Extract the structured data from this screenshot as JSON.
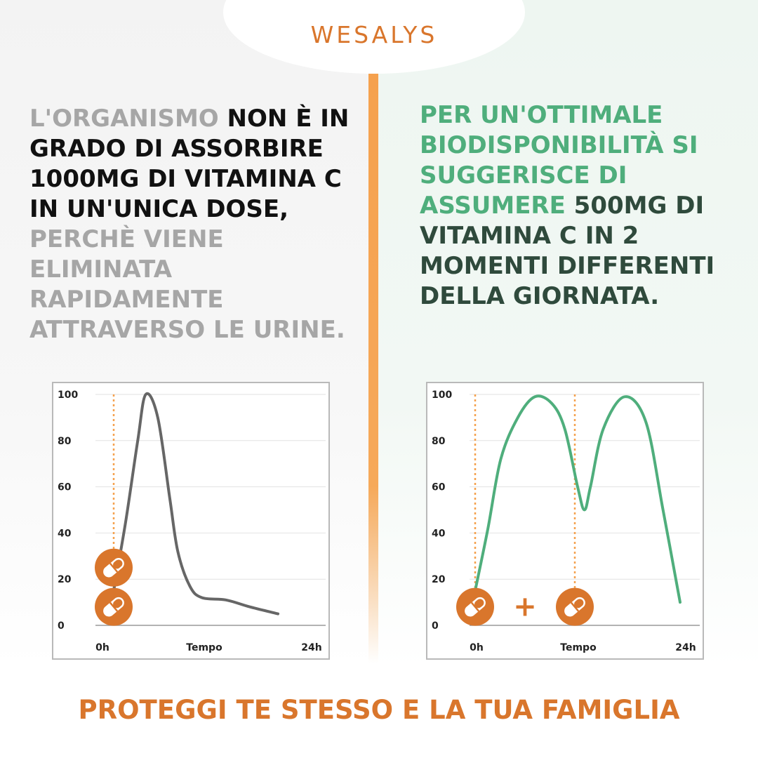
{
  "brand": {
    "logo": "WESALYS"
  },
  "left_text": {
    "part1": "L'ORGANISMO",
    "part2": " NON È IN GRADO DI ASSORBIRE 1000MG DI VITAMINA C IN UN'UNICA DOSE,",
    "part3": " PERCHÈ VIENE ELIMINATA RAPIDAMENTE ATTRAVERSO LE URINE."
  },
  "right_text": {
    "part1": "PER UN'OTTIMALE BIODISPONIBILITÀ SI SUGGERISCE DI ASSUMERE",
    "part2": " 500MG DI VITAMINA C IN 2 MOMENTI DIFFERENTI DELLA GIORNATA."
  },
  "plus_sign": "+",
  "footer": "PROTEGGI TE STESSO E LA TUA FAMIGLIA",
  "colors": {
    "accent_orange": "#d9762c",
    "divider_orange": "#f5a14e",
    "green": "#4fae7c",
    "dark_green": "#2f4a3c",
    "grey_text": "#a6a6a6",
    "line_grey": "#666666"
  },
  "chart_data": [
    {
      "type": "line",
      "title": "",
      "xlabel": "",
      "ylabel": "",
      "x_tick_labels": {
        "start": "0h",
        "middle": "Tempo",
        "end": "24h"
      },
      "x": [
        0,
        1.5,
        3,
        4,
        5.5,
        7,
        8,
        9.5,
        11,
        14,
        17,
        20.5
      ],
      "series": [
        {
          "values": [
            15,
            45,
            80,
            100,
            90,
            55,
            32,
            17,
            12,
            11,
            8,
            5
          ],
          "color": "#666666"
        }
      ],
      "xlim": [
        0,
        24
      ],
      "ylim": [
        0,
        100
      ],
      "y_ticks": [
        0,
        20,
        40,
        60,
        80,
        100
      ],
      "grid": true,
      "dose_markers": [
        {
          "x": 0,
          "values": [
            25,
            8
          ],
          "icon": "capsule-icon"
        }
      ]
    },
    {
      "type": "line",
      "title": "",
      "xlabel": "",
      "ylabel": "",
      "x_tick_labels": {
        "start": "0h",
        "middle": "Tempo",
        "end": "24h"
      },
      "x": [
        0,
        1.5,
        3,
        5,
        7,
        9,
        10.5,
        12,
        12.8,
        13.5,
        15,
        17.5,
        20,
        22,
        24
      ],
      "series": [
        {
          "values": [
            15,
            42,
            72,
            90,
            99,
            96,
            85,
            60,
            50,
            60,
            85,
            99,
            88,
            50,
            10
          ],
          "color": "#4fae7c"
        }
      ],
      "xlim": [
        0,
        24
      ],
      "ylim": [
        0,
        100
      ],
      "y_ticks": [
        0,
        20,
        40,
        60,
        80,
        100
      ],
      "grid": true,
      "dose_markers": [
        {
          "x": 0,
          "values": [
            8
          ],
          "icon": "capsule-icon"
        },
        {
          "x": 12,
          "values": [
            8
          ],
          "icon": "capsule-icon"
        }
      ]
    }
  ]
}
